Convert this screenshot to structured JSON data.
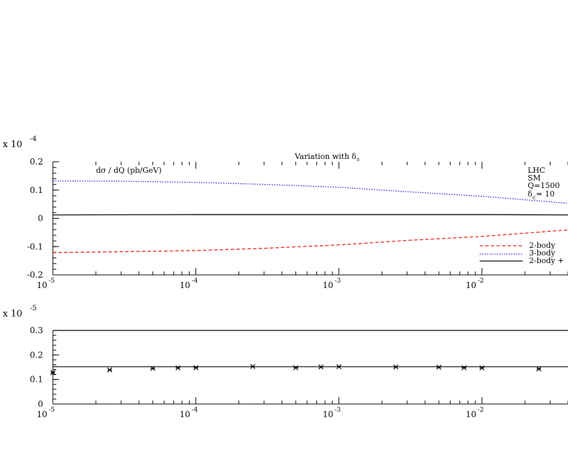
{
  "chart_data": [
    {
      "type": "line",
      "title": "Variation with δ",
      "title_sub": "s",
      "ylabel": "dσ / dQ (pb/GeV)",
      "y_multiplier": "x 10",
      "y_multiplier_exp": "-4",
      "x_scale": "log",
      "xlim": [
        1e-05,
        0.04
      ],
      "ylim": [
        -0.2,
        0.2
      ],
      "y_ticks": [
        {
          "v": 0.2,
          "label": "0.2"
        },
        {
          "v": 0.1,
          "label": "0.1"
        },
        {
          "v": 0,
          "label": "0"
        },
        {
          "v": -0.1,
          "label": "-0.1"
        },
        {
          "v": -0.2,
          "label": "-0.2"
        }
      ],
      "x_ticks": [
        {
          "v": 1e-05,
          "base": "10",
          "exp": "-5"
        },
        {
          "v": 0.0001,
          "base": "10",
          "exp": "-4"
        },
        {
          "v": 0.001,
          "base": "10",
          "exp": "-3"
        },
        {
          "v": 0.01,
          "base": "10",
          "exp": "-2"
        }
      ],
      "annotations": [
        {
          "text": "LHC"
        },
        {
          "text": "SM"
        },
        {
          "text": "Q=1500"
        },
        {
          "text": "δ",
          "sub": "c",
          "suffix": " = 10"
        }
      ],
      "legend_position": "bottom-right",
      "series": [
        {
          "name": "2-body",
          "color": "#e8211a",
          "dash": "dashed",
          "x": [
            1e-05,
            3e-05,
            0.0001,
            0.0003,
            0.001,
            0.003,
            0.01,
            0.04
          ],
          "y": [
            -0.121,
            -0.118,
            -0.114,
            -0.106,
            -0.094,
            -0.078,
            -0.064,
            -0.041
          ]
        },
        {
          "name": "3-body",
          "color": "#1a1ae6",
          "dash": "dotted",
          "x": [
            1e-05,
            3e-05,
            0.0001,
            0.0003,
            0.001,
            0.003,
            0.01,
            0.04
          ],
          "y": [
            0.132,
            0.131,
            0.127,
            0.12,
            0.11,
            0.094,
            0.078,
            0.053
          ]
        },
        {
          "name": "2-body +",
          "color": "#000000",
          "dash": "solid",
          "x": [
            1e-05,
            0.0001,
            0.001,
            0.01,
            0.04
          ],
          "y": [
            0.012,
            0.013,
            0.013,
            0.013,
            0.012
          ]
        }
      ]
    },
    {
      "type": "scatter",
      "y_multiplier": "x 10",
      "y_multiplier_exp": "-5",
      "x_scale": "log",
      "xlim": [
        1e-05,
        0.04
      ],
      "ylim": [
        0,
        0.3
      ],
      "y_ticks": [
        {
          "v": 0.3,
          "label": "0.3"
        },
        {
          "v": 0.2,
          "label": "0.2"
        },
        {
          "v": 0.1,
          "label": "0.1"
        },
        {
          "v": 0,
          "label": "0"
        }
      ],
      "x_ticks": [
        {
          "v": 1e-05,
          "base": "10",
          "exp": "-5"
        },
        {
          "v": 0.0001,
          "base": "10",
          "exp": "-4"
        },
        {
          "v": 0.001,
          "base": "10",
          "exp": "-3"
        },
        {
          "v": 0.01,
          "base": "10",
          "exp": "-2"
        }
      ],
      "reference_lines": [
        0.3,
        0.152
      ],
      "points": {
        "x": [
          1e-05,
          2.5e-05,
          5e-05,
          7.5e-05,
          0.0001,
          0.00025,
          0.0005,
          0.00075,
          0.001,
          0.0025,
          0.005,
          0.0075,
          0.01,
          0.025
        ],
        "y": [
          0.128,
          0.139,
          0.145,
          0.147,
          0.148,
          0.153,
          0.148,
          0.151,
          0.152,
          0.151,
          0.15,
          0.148,
          0.147,
          0.143
        ]
      }
    }
  ]
}
